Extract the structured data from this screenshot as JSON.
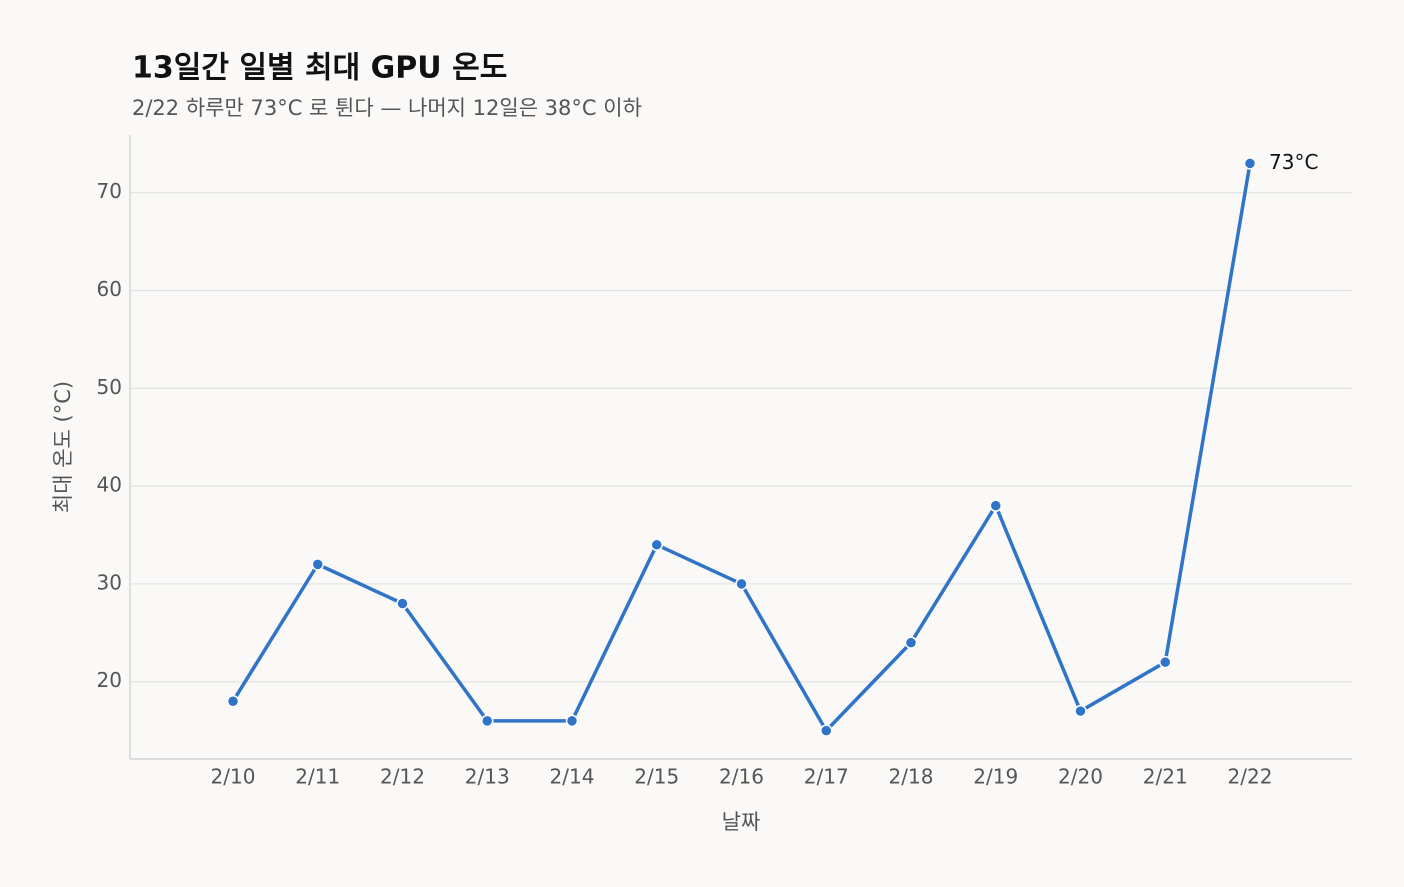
{
  "chart_data": {
    "type": "line",
    "title": "13일간 일별 최대 GPU 온도",
    "subtitle": "2/22 하루만 73°C 로 튄다 — 나머지 12일은 38°C 이하",
    "x_label": "날짜",
    "y_label": "최대 온도 (°C)",
    "categories": [
      "2/10",
      "2/11",
      "2/12",
      "2/13",
      "2/14",
      "2/15",
      "2/16",
      "2/17",
      "2/18",
      "2/19",
      "2/20",
      "2/21",
      "2/22"
    ],
    "series": [
      {
        "color": "#2f74c8",
        "values": [
          18,
          32,
          28,
          16,
          16,
          34,
          30,
          15,
          24,
          38,
          17,
          22,
          73
        ],
        "value_labels": [
          null,
          null,
          null,
          null,
          null,
          null,
          null,
          null,
          null,
          null,
          null,
          null,
          "73°C"
        ]
      }
    ],
    "ylim": [
      12.1,
      75.9
    ],
    "yticks": [
      20,
      30,
      40,
      50,
      60,
      70
    ],
    "grid": true
  }
}
